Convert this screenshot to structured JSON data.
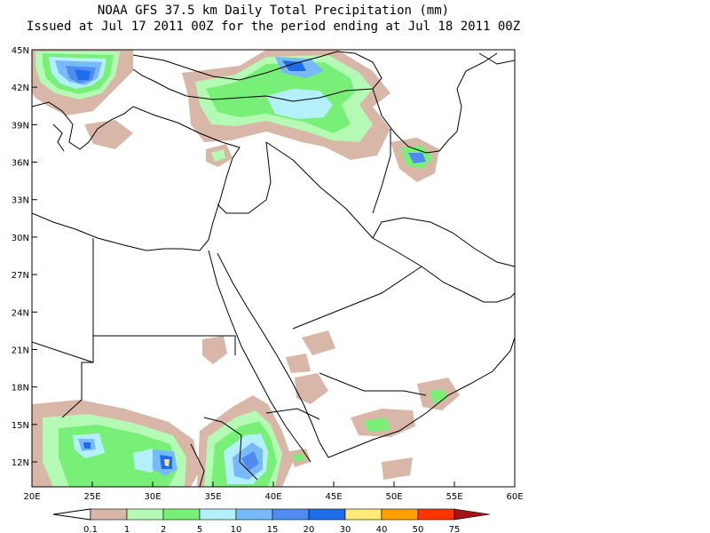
{
  "title": "NOAA GFS 37.5 km Daily Total Precipitation (mm)",
  "subtitle": "Issued at Jul 17 2011 00Z for the period ending at Jul 18 2011 00Z",
  "lat_labels": [
    "45N",
    "42N",
    "39N",
    "36N",
    "33N",
    "30N",
    "27N",
    "24N",
    "21N",
    "18N",
    "15N",
    "12N"
  ],
  "lon_labels": [
    "20E",
    "25E",
    "30E",
    "35E",
    "40E",
    "45E",
    "50E",
    "55E",
    "60E"
  ],
  "legend": {
    "labels": [
      "0.1",
      "1",
      "2",
      "5",
      "10",
      "15",
      "20",
      "30",
      "40",
      "50",
      "75"
    ],
    "colors": [
      "#d9b7a8",
      "#b4fab4",
      "#78f078",
      "#b4f0fa",
      "#78b9fa",
      "#508cf0",
      "#1e6eeb",
      "#ffe978",
      "#ffa000",
      "#ff3200",
      "#a51414"
    ]
  },
  "map": {
    "lon_range": [
      20,
      60
    ],
    "lat_range": [
      10,
      45
    ],
    "precip_colors": {
      "c01": "#d9b7a8",
      "c1": "#b4fab4",
      "c2": "#78f078",
      "c5": "#b4f0fa",
      "c10": "#78b9fa",
      "c15": "#508cf0",
      "c20": "#1e6eeb",
      "c30": "#ffe978"
    }
  }
}
